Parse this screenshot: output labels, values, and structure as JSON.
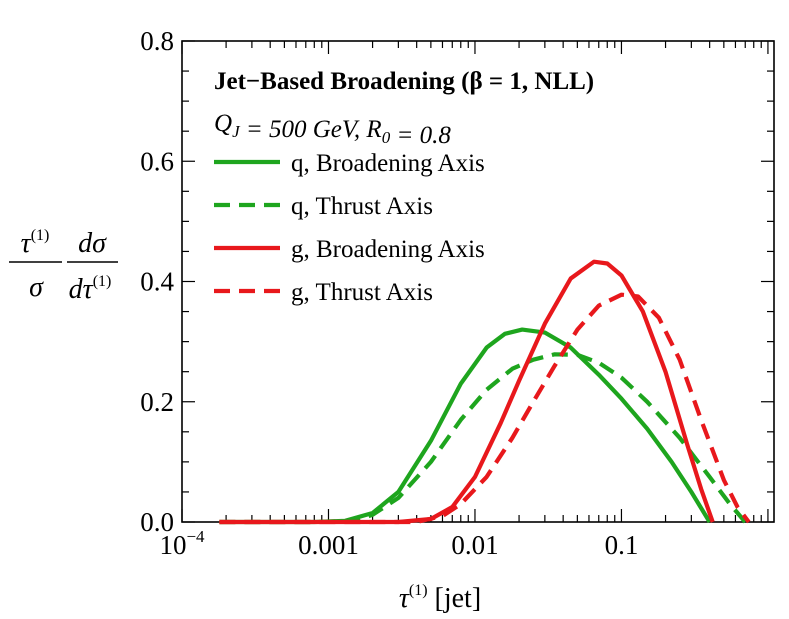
{
  "chart_data": {
    "type": "line",
    "title": "Jet−Based Broadening (β = 1, NLL)",
    "subtitle": "Q_J = 500 GeV, R_0 = 0.8",
    "xlabel": "τ(1) [jet]",
    "ylabel": "τ(1)/σ dσ/dτ(1)",
    "xscale": "log",
    "xlim": [
      0.0001,
      1.1
    ],
    "ylim": [
      0,
      0.8
    ],
    "xticks": [
      {
        "value": 0.0001,
        "label": "10−4"
      },
      {
        "value": 0.001,
        "label": "0.001"
      },
      {
        "value": 0.01,
        "label": "0.01"
      },
      {
        "value": 0.1,
        "label": "0.1"
      }
    ],
    "yticks": [
      {
        "value": 0,
        "label": "0.0"
      },
      {
        "value": 0.2,
        "label": "0.2"
      },
      {
        "value": 0.4,
        "label": "0.4"
      },
      {
        "value": 0.6,
        "label": "0.6"
      },
      {
        "value": 0.8,
        "label": "0.8"
      }
    ],
    "legend_position": "top-left",
    "series": [
      {
        "name": "q, Broadening Axis",
        "color": "#1ea51e",
        "dash": "solid",
        "x": [
          0.00018,
          0.0008,
          0.0013,
          0.002,
          0.003,
          0.005,
          0.008,
          0.012,
          0.016,
          0.021,
          0.03,
          0.045,
          0.07,
          0.1,
          0.15,
          0.22,
          0.3,
          0.4
        ],
        "y": [
          0,
          0,
          0.002,
          0.015,
          0.05,
          0.135,
          0.23,
          0.29,
          0.313,
          0.32,
          0.315,
          0.29,
          0.245,
          0.205,
          0.155,
          0.1,
          0.05,
          0
        ]
      },
      {
        "name": "q, Thrust Axis",
        "color": "#1ea51e",
        "dash": "dashed",
        "x": [
          0.00018,
          0.0008,
          0.0015,
          0.002,
          0.003,
          0.005,
          0.008,
          0.012,
          0.018,
          0.025,
          0.035,
          0.05,
          0.07,
          0.1,
          0.15,
          0.25,
          0.4,
          0.55,
          0.7
        ],
        "y": [
          0,
          0,
          0.002,
          0.012,
          0.04,
          0.1,
          0.17,
          0.22,
          0.255,
          0.27,
          0.279,
          0.278,
          0.265,
          0.24,
          0.2,
          0.14,
          0.075,
          0.03,
          0
        ]
      },
      {
        "name": "g, Broadening Axis",
        "color": "#e8181c",
        "dash": "solid",
        "x": [
          0.00018,
          0.003,
          0.005,
          0.007,
          0.01,
          0.015,
          0.02,
          0.03,
          0.045,
          0.065,
          0.08,
          0.1,
          0.14,
          0.2,
          0.28,
          0.35,
          0.42
        ],
        "y": [
          0,
          0,
          0.005,
          0.025,
          0.075,
          0.165,
          0.235,
          0.33,
          0.405,
          0.433,
          0.43,
          0.41,
          0.35,
          0.25,
          0.13,
          0.055,
          0
        ]
      },
      {
        "name": "g, Thrust Axis",
        "color": "#e8181c",
        "dash": "dashed",
        "x": [
          0.00018,
          0.004,
          0.006,
          0.008,
          0.012,
          0.018,
          0.025,
          0.035,
          0.05,
          0.07,
          0.1,
          0.13,
          0.18,
          0.25,
          0.35,
          0.5,
          0.62,
          0.74
        ],
        "y": [
          0,
          0,
          0.01,
          0.03,
          0.075,
          0.14,
          0.2,
          0.26,
          0.32,
          0.36,
          0.378,
          0.375,
          0.34,
          0.27,
          0.17,
          0.07,
          0.025,
          0
        ]
      }
    ]
  }
}
